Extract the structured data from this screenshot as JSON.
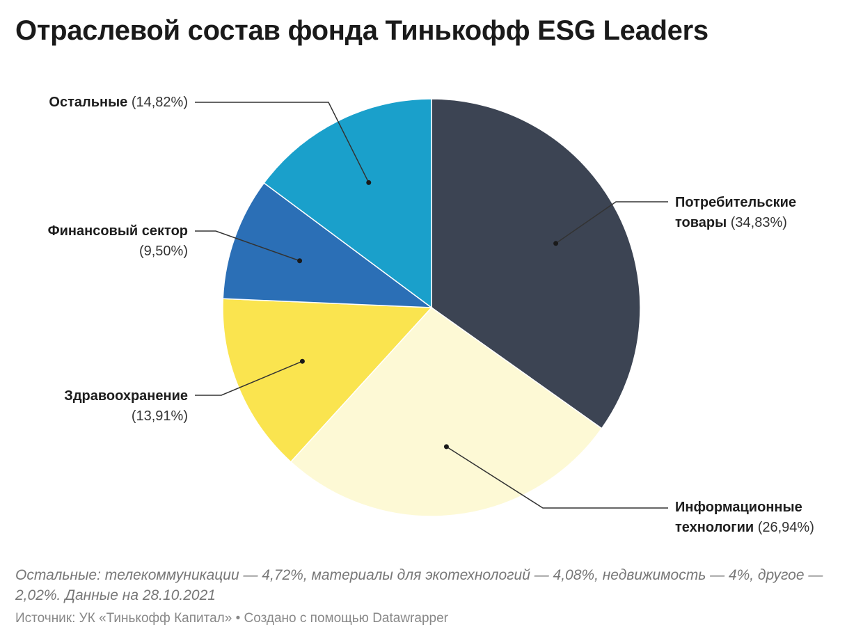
{
  "title": "Отраслевой состав фонда Тинькофф ESG Leaders",
  "chart_data": {
    "type": "pie",
    "start_angle_deg": 0,
    "direction": "clockwise",
    "slices": [
      {
        "name_line1": "Потребительские",
        "name_line2": "товары",
        "pct_label": "(34,83%)",
        "value": 34.83,
        "color": "#3c4453"
      },
      {
        "name_line1": "Информационные",
        "name_line2": "технологии",
        "pct_label": "(26,94%)",
        "value": 26.94,
        "color": "#fdf9d5"
      },
      {
        "name_line1": "Здравоохранение",
        "name_line2": "",
        "pct_label": "(13,91%)",
        "value": 13.91,
        "color": "#fae44f"
      },
      {
        "name_line1": "Финансовый сектор",
        "name_line2": "",
        "pct_label": "(9,50%)",
        "value": 9.5,
        "color": "#2b6fb6"
      },
      {
        "name_line1": "Остальные",
        "name_line2": "",
        "pct_label": "(14,82%)",
        "value": 14.82,
        "color": "#1aa0cb"
      }
    ]
  },
  "note": "Остальные: телекоммуникации — 4,72%, материалы для экотехнологий — 4,08%, недвижимость — 4%, другое — 2,02%. Данные на 28.10.2021",
  "source": "Источник: УК «Тинькофф Капитал» • Создано с помощью Datawrapper"
}
